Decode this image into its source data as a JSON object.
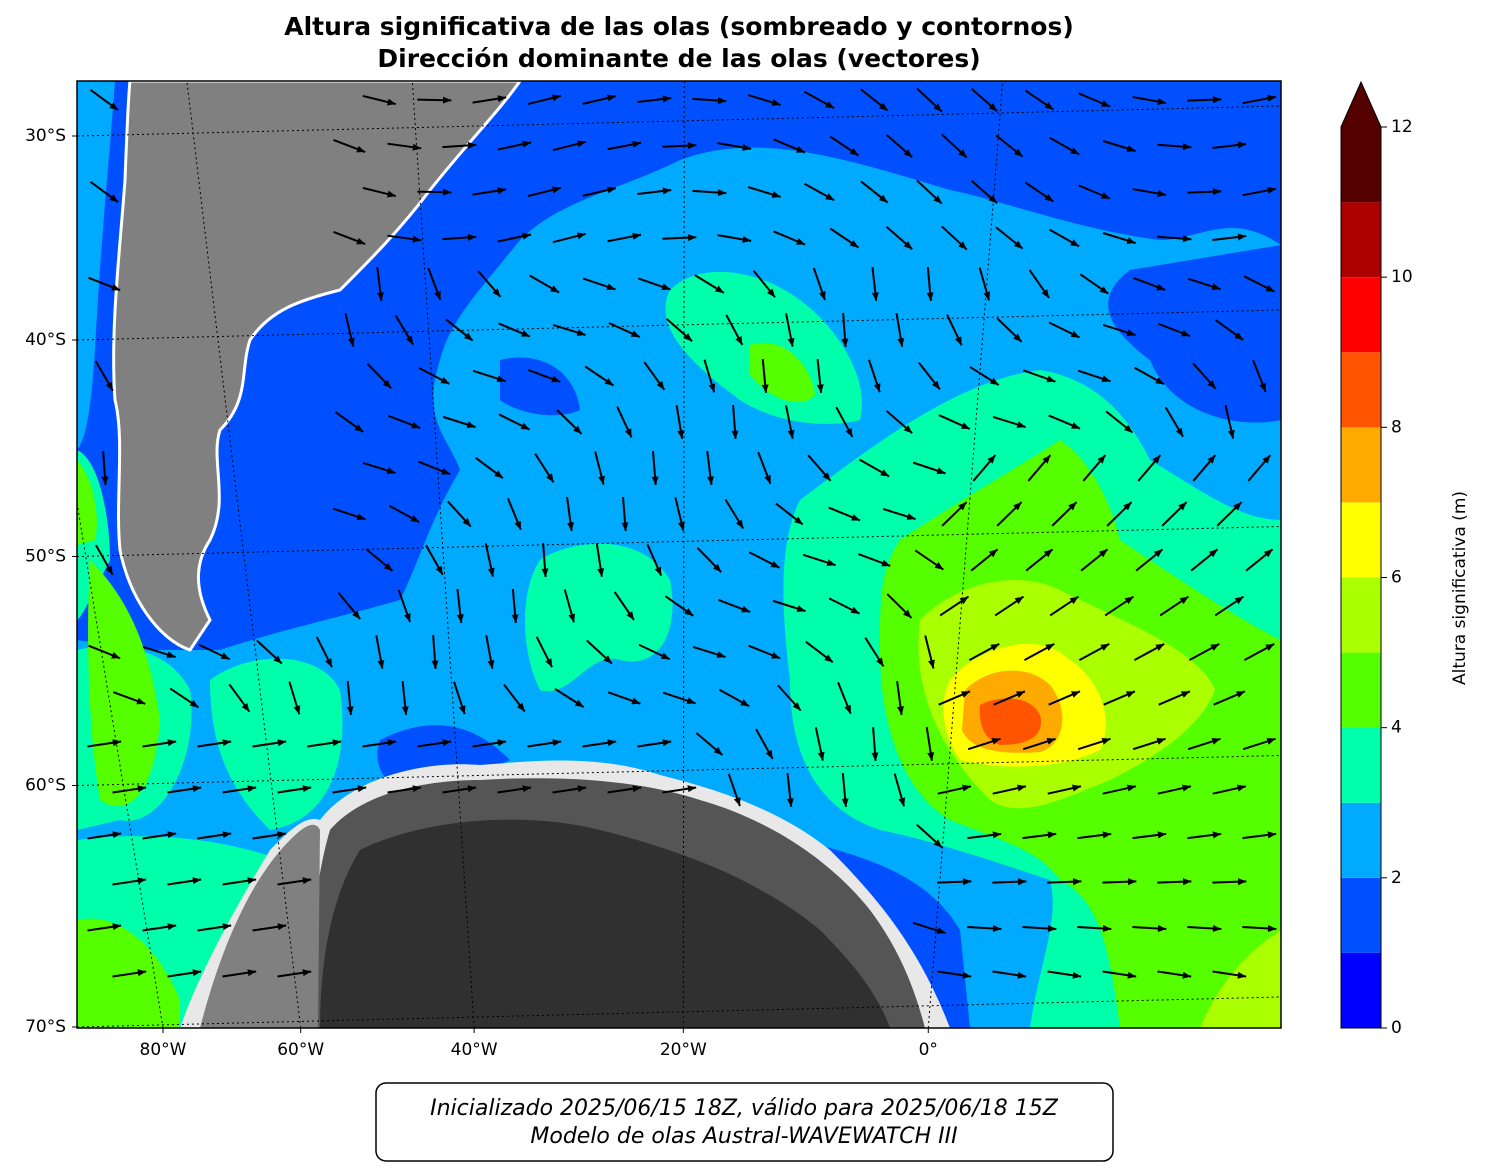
{
  "chart_data": {
    "type": "contour-map",
    "title": "Altura significativa de las olas (sombreado y contornos)",
    "subtitle": "Dirección dominante de las olas (vectores)",
    "yticks": [
      {
        "value": -30,
        "label": "30°S"
      },
      {
        "value": -40,
        "label": "40°S"
      },
      {
        "value": -50,
        "label": "50°S"
      },
      {
        "value": -60,
        "label": "60°S"
      },
      {
        "value": -70,
        "label": "70°S"
      }
    ],
    "xticks": [
      {
        "value": -80,
        "label": "80°W"
      },
      {
        "value": -60,
        "label": "60°W"
      },
      {
        "value": -40,
        "label": "40°W"
      },
      {
        "value": -20,
        "label": "20°W"
      },
      {
        "value": 0,
        "label": "0°"
      }
    ],
    "colorbar": {
      "label": "Altura significativa (m)",
      "levels": [
        0,
        1,
        2,
        3,
        4,
        5,
        6,
        7,
        8,
        9,
        10,
        11,
        12
      ],
      "colors": [
        "#0000ff",
        "#0050ff",
        "#00aaff",
        "#00ffaa",
        "#55ff00",
        "#aaff00",
        "#ffff00",
        "#ffaa00",
        "#ff5500",
        "#ff0000",
        "#aa0000",
        "#550000"
      ],
      "ticks": [
        0,
        2,
        4,
        6,
        8,
        10,
        12
      ]
    },
    "footer": [
      "Inicializado 2025/06/15 18Z, válido para 2025/06/18 15Z",
      "Modelo de olas Austral-WAVEWATCH III"
    ]
  }
}
